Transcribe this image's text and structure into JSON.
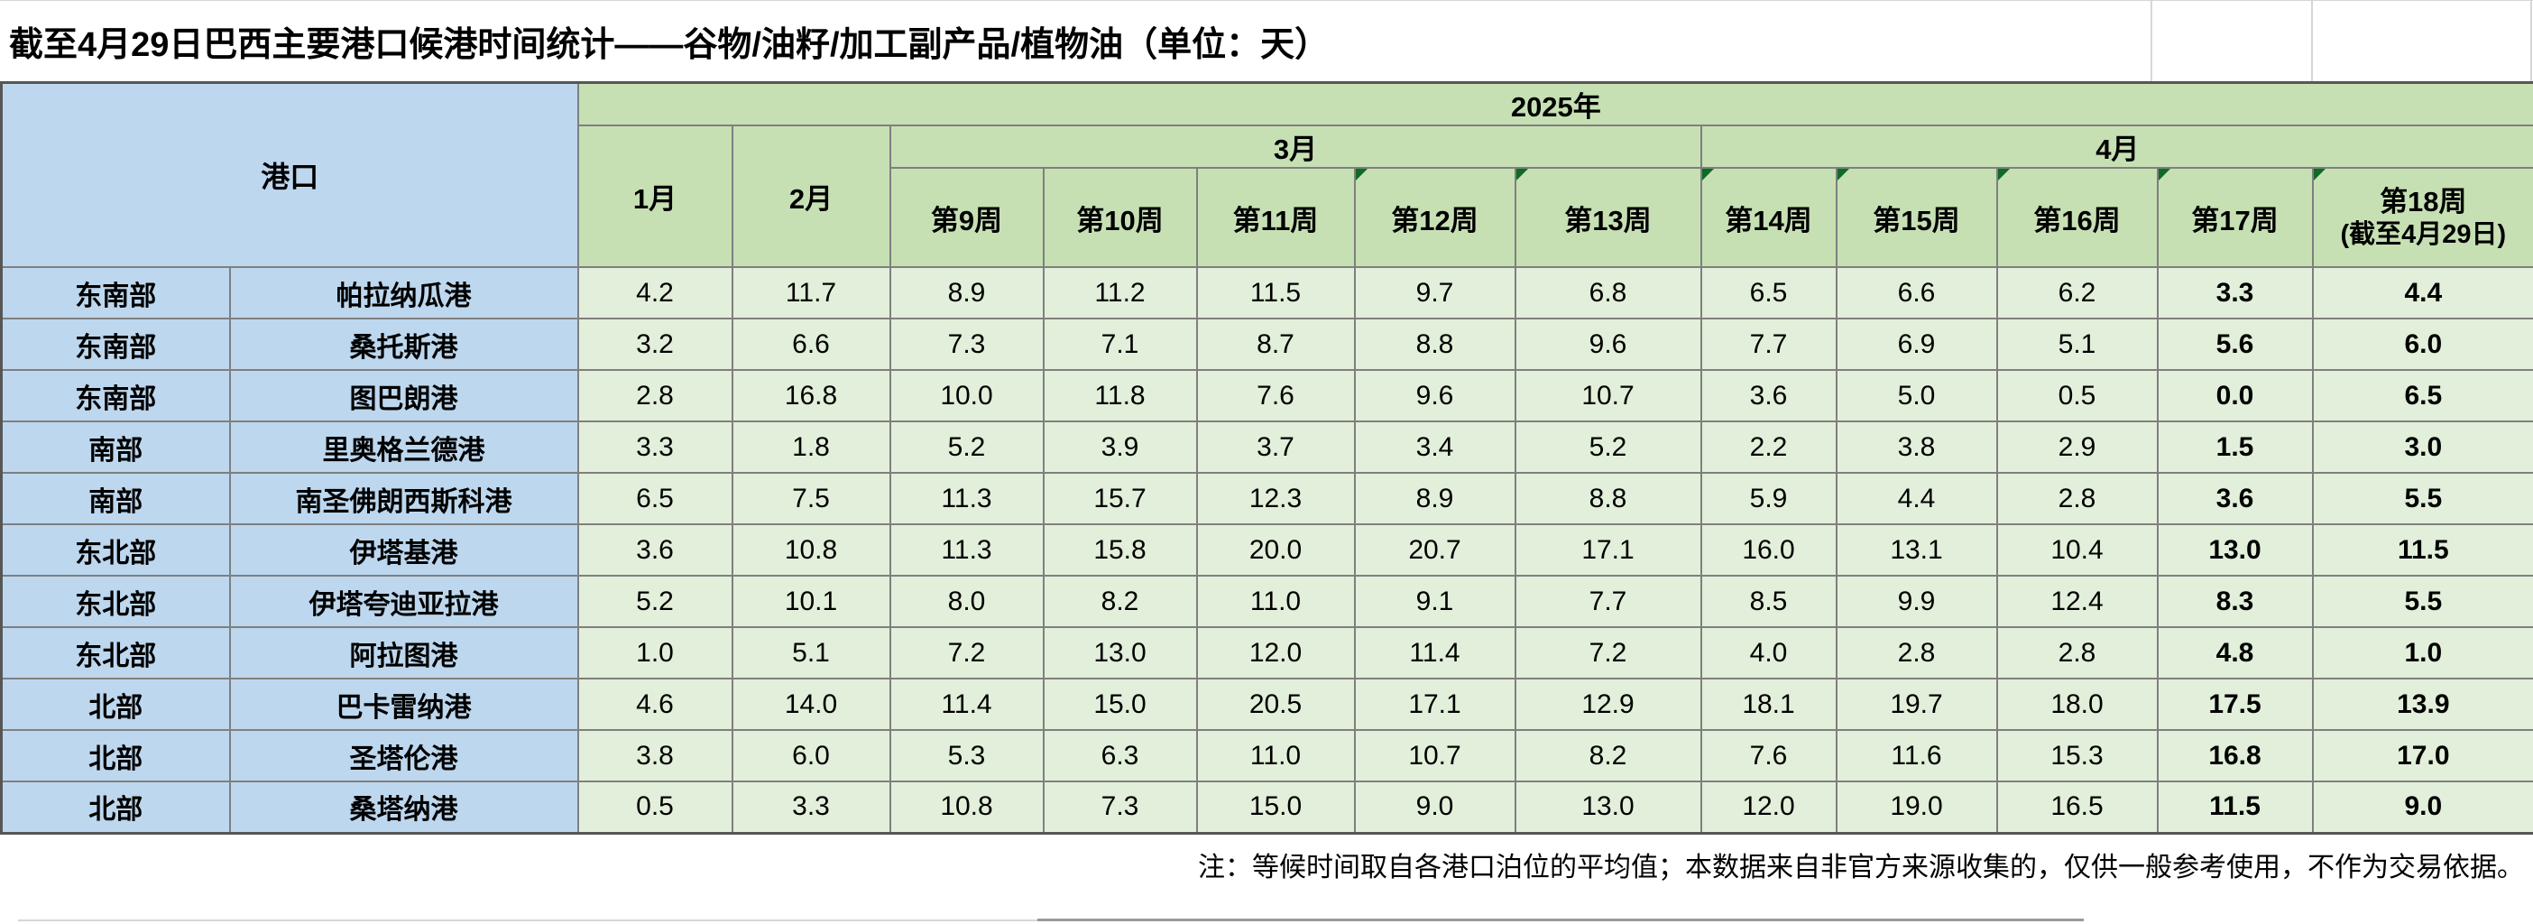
{
  "title": "截至4月29日巴西主要港口候港时间统计——谷物/油籽/加工副产品/植物油（单位：天）",
  "table": {
    "port_header": "港口",
    "year": "2025年",
    "months": [
      "1月",
      "2月",
      "3月",
      "4月"
    ],
    "weeks": [
      "第9周",
      "第10周",
      "第11周",
      "第12周",
      "第13周",
      "第14周",
      "第15周",
      "第16周",
      "第17周",
      "第18周"
    ],
    "week18_note": "(截至4月29日)"
  },
  "rows": [
    {
      "region": "东南部",
      "port": "帕拉纳瓜港",
      "values": [
        "4.2",
        "11.7",
        "8.9",
        "11.2",
        "11.5",
        "9.7",
        "6.8",
        "6.5",
        "6.6",
        "6.2",
        "3.3",
        "4.4"
      ]
    },
    {
      "region": "东南部",
      "port": "桑托斯港",
      "values": [
        "3.2",
        "6.6",
        "7.3",
        "7.1",
        "8.7",
        "8.8",
        "9.6",
        "7.7",
        "6.9",
        "5.1",
        "5.6",
        "6.0"
      ]
    },
    {
      "region": "东南部",
      "port": "图巴朗港",
      "values": [
        "2.8",
        "16.8",
        "10.0",
        "11.8",
        "7.6",
        "9.6",
        "10.7",
        "3.6",
        "5.0",
        "0.5",
        "0.0",
        "6.5"
      ]
    },
    {
      "region": "南部",
      "port": "里奥格兰德港",
      "values": [
        "3.3",
        "1.8",
        "5.2",
        "3.9",
        "3.7",
        "3.4",
        "5.2",
        "2.2",
        "3.8",
        "2.9",
        "1.5",
        "3.0"
      ]
    },
    {
      "region": "南部",
      "port": "南圣佛朗西斯科港",
      "values": [
        "6.5",
        "7.5",
        "11.3",
        "15.7",
        "12.3",
        "8.9",
        "8.8",
        "5.9",
        "4.4",
        "2.8",
        "3.6",
        "5.5"
      ]
    },
    {
      "region": "东北部",
      "port": "伊塔基港",
      "values": [
        "3.6",
        "10.8",
        "11.3",
        "15.8",
        "20.0",
        "20.7",
        "17.1",
        "16.0",
        "13.1",
        "10.4",
        "13.0",
        "11.5"
      ]
    },
    {
      "region": "东北部",
      "port": "伊塔夸迪亚拉港",
      "values": [
        "5.2",
        "10.1",
        "8.0",
        "8.2",
        "11.0",
        "9.1",
        "7.7",
        "8.5",
        "9.9",
        "12.4",
        "8.3",
        "5.5"
      ]
    },
    {
      "region": "东北部",
      "port": "阿拉图港",
      "values": [
        "1.0",
        "5.1",
        "7.2",
        "13.0",
        "12.0",
        "11.4",
        "7.2",
        "4.0",
        "2.8",
        "2.8",
        "4.8",
        "1.0"
      ]
    },
    {
      "region": "北部",
      "port": "巴卡雷纳港",
      "values": [
        "4.6",
        "14.0",
        "11.4",
        "15.0",
        "20.5",
        "17.1",
        "12.9",
        "18.1",
        "19.7",
        "18.0",
        "17.5",
        "13.9"
      ]
    },
    {
      "region": "北部",
      "port": "圣塔伦港",
      "values": [
        "3.8",
        "6.0",
        "5.3",
        "6.3",
        "11.0",
        "10.7",
        "8.2",
        "7.6",
        "11.6",
        "15.3",
        "16.8",
        "17.0"
      ]
    },
    {
      "region": "北部",
      "port": "桑塔纳港",
      "values": [
        "0.5",
        "3.3",
        "10.8",
        "7.3",
        "15.0",
        "9.0",
        "13.0",
        "12.0",
        "19.0",
        "16.5",
        "11.5",
        "9.0"
      ]
    }
  ],
  "note": "注：等候时间取自各港口泊位的平均值；本数据来自非官方来源收集的，仅供一般参考使用，不作为交易依据。",
  "colors": {
    "header_green": "#c6e0b4",
    "data_green": "#e2efda",
    "port_blue": "#bdd7ee",
    "grid_gray": "#7f7f7f",
    "flag_green": "#0e6b24"
  }
}
